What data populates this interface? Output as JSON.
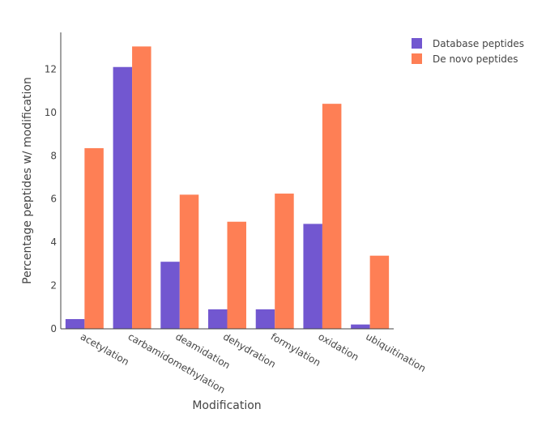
{
  "chart_data": {
    "type": "bar",
    "title": "",
    "xlabel": "Modification",
    "ylabel": "Percentage peptides w/ modification",
    "categories": [
      "acetylation",
      "carbamidomethylation",
      "deamidation",
      "dehydration",
      "formylation",
      "oxidation",
      "ubiquitination"
    ],
    "series": [
      {
        "name": "Database peptides",
        "color": "#7257d0",
        "values": [
          0.45,
          12.1,
          3.1,
          0.9,
          0.9,
          4.85,
          0.2
        ]
      },
      {
        "name": "De novo peptides",
        "color": "#fe7f55",
        "values": [
          8.35,
          13.05,
          6.2,
          4.95,
          6.25,
          10.4,
          3.38
        ]
      }
    ],
    "ylim": [
      0,
      13.7
    ],
    "yticks": [
      0,
      2,
      4,
      6,
      8,
      10,
      12
    ],
    "grid": false,
    "legend_position": "top-right"
  }
}
